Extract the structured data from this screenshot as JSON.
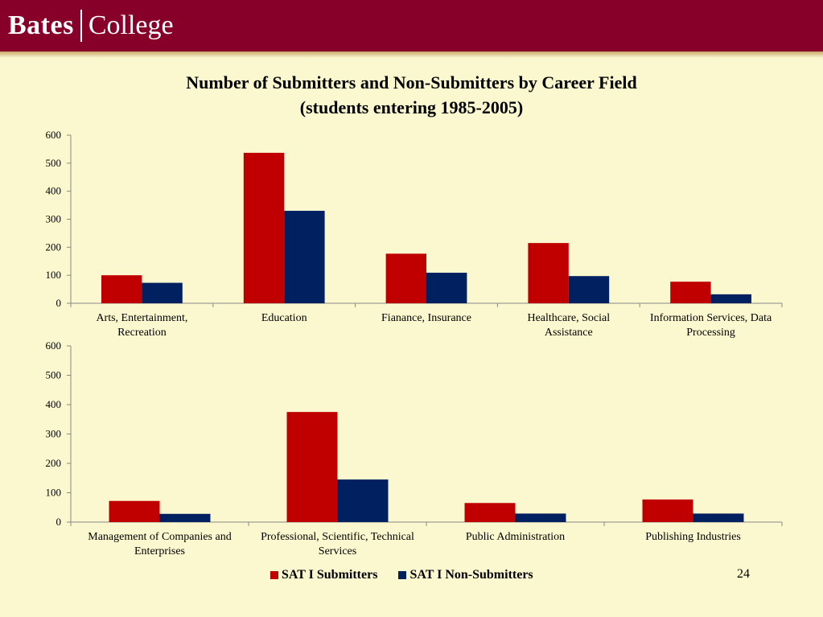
{
  "header": {
    "logo_word1": "Bates",
    "logo_word2": "College",
    "bg_color": "#86002a"
  },
  "title_line1": "Number of Submitters and Non-Submitters by Career Field",
  "title_line2": "(students entering 1985-2005)",
  "page_number": "24",
  "colors": {
    "submitters": "#c00000",
    "non_submitters": "#002060",
    "background": "#fbf8cf"
  },
  "chart_data": [
    {
      "type": "bar",
      "categories": [
        [
          "Arts, Entertainment,",
          "Recreation"
        ],
        [
          "Education"
        ],
        [
          "Fianance, Insurance"
        ],
        [
          "Healthcare, Social",
          "Assistance"
        ],
        [
          "Information Services, Data",
          "Processing"
        ]
      ],
      "series": [
        {
          "name": "SAT I Submitters",
          "values": [
            100,
            537,
            177,
            215,
            77
          ]
        },
        {
          "name": "SAT I Non-Submitters",
          "values": [
            73,
            330,
            109,
            97,
            32
          ]
        }
      ],
      "ylim": [
        0,
        600
      ],
      "yticks": [
        0,
        100,
        200,
        300,
        400,
        500,
        600
      ]
    },
    {
      "type": "bar",
      "categories": [
        [
          "Management of Companies and",
          "Enterprises"
        ],
        [
          "Professional, Scientific, Technical",
          "Services"
        ],
        [
          "Public Administration"
        ],
        [
          "Publishing Industries"
        ]
      ],
      "series": [
        {
          "name": "SAT I Submitters",
          "values": [
            72,
            375,
            65,
            77
          ]
        },
        {
          "name": "SAT I Non-Submitters",
          "values": [
            28,
            145,
            29,
            29
          ]
        }
      ],
      "ylim": [
        0,
        600
      ],
      "yticks": [
        0,
        100,
        200,
        300,
        400,
        500,
        600
      ]
    }
  ],
  "legend": [
    {
      "label": "SAT I Submitters",
      "color": "#c00000"
    },
    {
      "label": "SAT I Non-Submitters",
      "color": "#002060"
    }
  ]
}
